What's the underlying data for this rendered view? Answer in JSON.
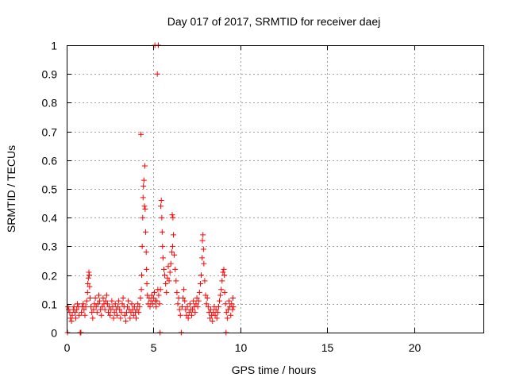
{
  "chart_data": {
    "type": "scatter",
    "title": "Day 017 of 2017, SRMTID for receiver daej",
    "xlabel": "GPS time / hours",
    "ylabel": "SRMTID / TECUs",
    "xlim": [
      0,
      24
    ],
    "ylim": [
      0,
      1
    ],
    "xticks": [
      0,
      5,
      10,
      15,
      20
    ],
    "yticks": [
      0,
      0.1,
      0.2,
      0.3,
      0.4,
      0.5,
      0.6,
      0.7,
      0.8,
      0.9,
      1
    ],
    "xtick_labels": [
      "0",
      "5",
      "10",
      "15",
      "20"
    ],
    "ytick_labels": [
      "0",
      "0.1",
      "0.2",
      "0.3",
      "0.4",
      "0.5",
      "0.6",
      "0.7",
      "0.8",
      "0.9",
      "1"
    ],
    "grid": true,
    "marker": "+",
    "color": "#ff0000",
    "series": [
      {
        "name": "SRMTID",
        "points": [
          [
            0.05,
            0.0
          ],
          [
            0.08,
            0.09
          ],
          [
            0.12,
            0.08
          ],
          [
            0.18,
            0.07
          ],
          [
            0.22,
            0.05
          ],
          [
            0.28,
            0.04
          ],
          [
            0.32,
            0.06
          ],
          [
            0.38,
            0.08
          ],
          [
            0.42,
            0.09
          ],
          [
            0.48,
            0.07
          ],
          [
            0.52,
            0.05
          ],
          [
            0.58,
            0.08
          ],
          [
            0.62,
            0.1
          ],
          [
            0.68,
            0.09
          ],
          [
            0.72,
            0.06
          ],
          [
            0.78,
            0.0
          ],
          [
            0.82,
            0.0
          ],
          [
            0.85,
            0.07
          ],
          [
            0.9,
            0.09
          ],
          [
            0.95,
            0.1
          ],
          [
            1.0,
            0.08
          ],
          [
            1.05,
            0.06
          ],
          [
            1.1,
            0.09
          ],
          [
            1.15,
            0.11
          ],
          [
            1.2,
            0.14
          ],
          [
            1.22,
            0.17
          ],
          [
            1.25,
            0.19
          ],
          [
            1.28,
            0.21
          ],
          [
            1.3,
            0.2
          ],
          [
            1.32,
            0.16
          ],
          [
            1.35,
            0.12
          ],
          [
            1.4,
            0.09
          ],
          [
            1.45,
            0.07
          ],
          [
            1.5,
            0.05
          ],
          [
            1.55,
            0.08
          ],
          [
            1.6,
            0.1
          ],
          [
            1.65,
            0.12
          ],
          [
            1.7,
            0.09
          ],
          [
            1.75,
            0.07
          ],
          [
            1.8,
            0.1
          ],
          [
            1.85,
            0.13
          ],
          [
            1.9,
            0.11
          ],
          [
            1.95,
            0.08
          ],
          [
            2.0,
            0.06
          ],
          [
            2.05,
            0.09
          ],
          [
            2.1,
            0.12
          ],
          [
            2.15,
            0.1
          ],
          [
            2.2,
            0.08
          ],
          [
            2.25,
            0.11
          ],
          [
            2.3,
            0.13
          ],
          [
            2.35,
            0.1
          ],
          [
            2.4,
            0.07
          ],
          [
            2.45,
            0.09
          ],
          [
            2.5,
            0.06
          ],
          [
            2.55,
            0.08
          ],
          [
            2.6,
            0.11
          ],
          [
            2.65,
            0.09
          ],
          [
            2.7,
            0.05
          ],
          [
            2.75,
            0.07
          ],
          [
            2.8,
            0.1
          ],
          [
            2.85,
            0.08
          ],
          [
            2.9,
            0.06
          ],
          [
            2.95,
            0.09
          ],
          [
            3.0,
            0.11
          ],
          [
            3.05,
            0.08
          ],
          [
            3.1,
            0.05
          ],
          [
            3.15,
            0.07
          ],
          [
            3.2,
            0.1
          ],
          [
            3.25,
            0.12
          ],
          [
            3.3,
            0.09
          ],
          [
            3.35,
            0.06
          ],
          [
            3.4,
            0.04
          ],
          [
            3.45,
            0.07
          ],
          [
            3.5,
            0.09
          ],
          [
            3.55,
            0.11
          ],
          [
            3.6,
            0.08
          ],
          [
            3.65,
            0.05
          ],
          [
            3.7,
            0.07
          ],
          [
            3.75,
            0.1
          ],
          [
            3.8,
            0.08
          ],
          [
            3.85,
            0.06
          ],
          [
            3.9,
            0.09
          ],
          [
            3.95,
            0.07
          ],
          [
            4.0,
            0.05
          ],
          [
            4.05,
            0.08
          ],
          [
            4.1,
            0.1
          ],
          [
            4.15,
            0.07
          ],
          [
            4.2,
            0.09
          ],
          [
            4.25,
            0.12
          ],
          [
            4.28,
            0.69
          ],
          [
            4.3,
            0.15
          ],
          [
            4.32,
            0.2
          ],
          [
            4.35,
            0.3
          ],
          [
            4.38,
            0.4
          ],
          [
            4.4,
            0.47
          ],
          [
            4.42,
            0.51
          ],
          [
            4.45,
            0.53
          ],
          [
            4.48,
            0.44
          ],
          [
            4.5,
            0.58
          ],
          [
            4.52,
            0.43
          ],
          [
            4.55,
            0.35
          ],
          [
            4.58,
            0.28
          ],
          [
            4.6,
            0.22
          ],
          [
            4.62,
            0.17
          ],
          [
            4.65,
            0.13
          ],
          [
            4.7,
            0.1
          ],
          [
            4.75,
            0.12
          ],
          [
            4.8,
            0.09
          ],
          [
            4.85,
            0.11
          ],
          [
            4.9,
            0.13
          ],
          [
            4.95,
            0.1
          ],
          [
            5.0,
            0.12
          ],
          [
            5.05,
            0.14
          ],
          [
            5.08,
            1.0
          ],
          [
            5.1,
            0.11
          ],
          [
            5.15,
            0.09
          ],
          [
            5.2,
            0.11
          ],
          [
            5.22,
            0.9
          ],
          [
            5.25,
            0.15
          ],
          [
            5.28,
            1.0
          ],
          [
            5.3,
            0.13
          ],
          [
            5.35,
            0.1
          ],
          [
            5.38,
            0.0
          ],
          [
            5.4,
            0.15
          ],
          [
            5.42,
            0.44
          ],
          [
            5.45,
            0.46
          ],
          [
            5.48,
            0.4
          ],
          [
            5.5,
            0.35
          ],
          [
            5.52,
            0.3
          ],
          [
            5.55,
            0.26
          ],
          [
            5.6,
            0.22
          ],
          [
            5.65,
            0.2
          ],
          [
            5.7,
            0.17
          ],
          [
            5.75,
            0.14
          ],
          [
            5.8,
            0.19
          ],
          [
            5.85,
            0.23
          ],
          [
            5.9,
            0.18
          ],
          [
            5.95,
            0.21
          ],
          [
            6.0,
            0.24
          ],
          [
            6.05,
            0.28
          ],
          [
            6.08,
            0.41
          ],
          [
            6.1,
            0.3
          ],
          [
            6.12,
            0.4
          ],
          [
            6.15,
            0.34
          ],
          [
            6.2,
            0.27
          ],
          [
            6.25,
            0.22
          ],
          [
            6.3,
            0.18
          ],
          [
            6.35,
            0.14
          ],
          [
            6.4,
            0.1
          ],
          [
            6.45,
            0.12
          ],
          [
            6.5,
            0.08
          ],
          [
            6.55,
            0.06
          ],
          [
            6.6,
            0.0
          ],
          [
            6.65,
            0.09
          ],
          [
            6.7,
            0.12
          ],
          [
            6.75,
            0.15
          ],
          [
            6.8,
            0.11
          ],
          [
            6.85,
            0.08
          ],
          [
            6.9,
            0.06
          ],
          [
            6.95,
            0.09
          ],
          [
            7.0,
            0.05
          ],
          [
            7.05,
            0.07
          ],
          [
            7.1,
            0.1
          ],
          [
            7.15,
            0.08
          ],
          [
            7.2,
            0.06
          ],
          [
            7.25,
            0.08
          ],
          [
            7.3,
            0.11
          ],
          [
            7.35,
            0.09
          ],
          [
            7.4,
            0.07
          ],
          [
            7.45,
            0.1
          ],
          [
            7.5,
            0.12
          ],
          [
            7.55,
            0.09
          ],
          [
            7.6,
            0.11
          ],
          [
            7.65,
            0.14
          ],
          [
            7.7,
            0.17
          ],
          [
            7.75,
            0.2
          ],
          [
            7.8,
            0.26
          ],
          [
            7.82,
            0.32
          ],
          [
            7.85,
            0.34
          ],
          [
            7.88,
            0.29
          ],
          [
            7.9,
            0.24
          ],
          [
            7.95,
            0.18
          ],
          [
            8.0,
            0.13
          ],
          [
            8.05,
            0.1
          ],
          [
            8.1,
            0.12
          ],
          [
            8.15,
            0.09
          ],
          [
            8.2,
            0.07
          ],
          [
            8.25,
            0.05
          ],
          [
            8.3,
            0.08
          ],
          [
            8.35,
            0.06
          ],
          [
            8.4,
            0.04
          ],
          [
            8.45,
            0.07
          ],
          [
            8.5,
            0.09
          ],
          [
            8.55,
            0.06
          ],
          [
            8.6,
            0.08
          ],
          [
            8.65,
            0.05
          ],
          [
            8.7,
            0.07
          ],
          [
            8.75,
            0.09
          ],
          [
            8.8,
            0.11
          ],
          [
            8.85,
            0.13
          ],
          [
            8.9,
            0.15
          ],
          [
            8.95,
            0.18
          ],
          [
            9.0,
            0.21
          ],
          [
            9.05,
            0.22
          ],
          [
            9.08,
            0.2
          ],
          [
            9.1,
            0.14
          ],
          [
            9.15,
            0.1
          ],
          [
            9.18,
            0.0
          ],
          [
            9.2,
            0.07
          ],
          [
            9.25,
            0.05
          ],
          [
            9.3,
            0.08
          ],
          [
            9.35,
            0.11
          ],
          [
            9.4,
            0.09
          ],
          [
            9.45,
            0.06
          ],
          [
            9.5,
            0.1
          ],
          [
            9.55,
            0.08
          ],
          [
            9.58,
            0.12
          ],
          [
            9.6,
            0.09
          ]
        ]
      }
    ]
  }
}
